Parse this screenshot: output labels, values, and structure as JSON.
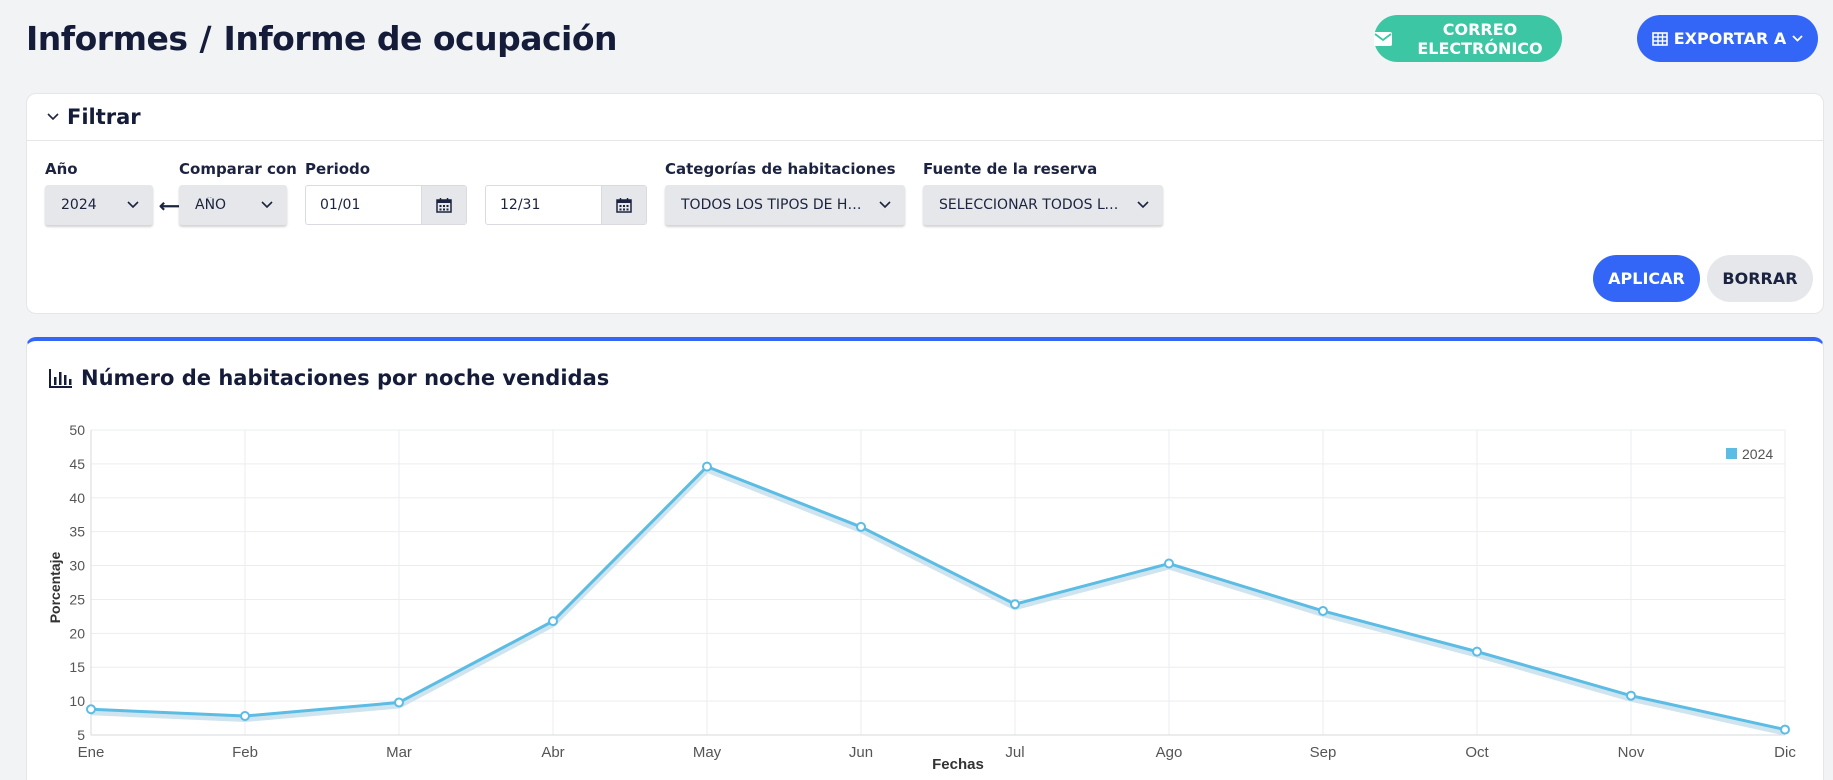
{
  "header": {
    "breadcrumb_root": "Informes",
    "separator": "/",
    "page_title": "Informe de ocupación",
    "email_button": "CORREO ELECTRÓNICO",
    "export_button": "EXPORTAR A"
  },
  "filter": {
    "title": "Filtrar",
    "year_label": "Año",
    "year_value": "2024",
    "compare_label": "Comparar con",
    "compare_value": "AÑO",
    "period_label": "Periodo",
    "period_start": "01/01",
    "period_end": "12/31",
    "room_categories_label": "Categorías de habitaciones",
    "room_categories_value": "TODOS LOS TIPOS DE HABITACIÓN",
    "source_label": "Fuente de la reserva",
    "source_value": "SELECCIONAR TODOS LOS CANALES",
    "apply_button": "APLICAR",
    "clear_button": "BORRAR"
  },
  "chart_section": {
    "title": "Número de habitaciones por noche vendidas"
  },
  "colors": {
    "primary": "#3366f6",
    "email": "#3cc6a3",
    "series": "#5bbce4"
  },
  "chart_data": {
    "type": "line",
    "xlabel": "Fechas",
    "ylabel": "Porcentaje",
    "categories": [
      "Ene",
      "Feb",
      "Mar",
      "Abr",
      "May",
      "Jun",
      "Jul",
      "Ago",
      "Sep",
      "Oct",
      "Nov",
      "Dic"
    ],
    "ylim": [
      5,
      50
    ],
    "yticks": [
      5,
      10,
      15,
      20,
      25,
      30,
      35,
      40,
      45,
      50
    ],
    "grid": true,
    "legend_position": "top-right",
    "series": [
      {
        "name": "2024",
        "color": "#5bbce4",
        "values": [
          8.8,
          7.8,
          9.8,
          21.8,
          44.6,
          35.7,
          24.3,
          30.3,
          23.3,
          17.3,
          10.8,
          5.8
        ]
      }
    ]
  }
}
